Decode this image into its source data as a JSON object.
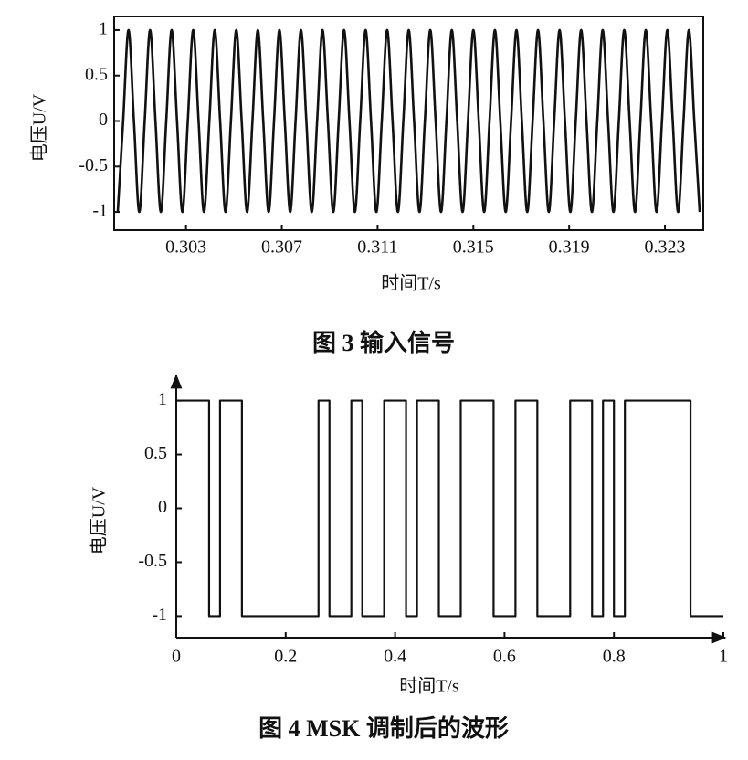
{
  "chart_data": [
    {
      "type": "line",
      "caption": "图 3  输入信号",
      "xlabel": "时间T/s",
      "ylabel": "电压U/V",
      "color": "#111111",
      "smooth": true,
      "box": true,
      "xlim": [
        0.3,
        0.3246
      ],
      "ylim": [
        -1.2,
        1.15
      ],
      "xticks": [
        0.303,
        0.307,
        0.311,
        0.315,
        0.319,
        0.323
      ],
      "yticks": [
        -1,
        -0.5,
        0,
        0.5,
        1
      ],
      "x": [
        0.30015,
        0.300375,
        0.3006,
        0.300825,
        0.30105,
        0.301275,
        0.3015,
        0.301725,
        0.30195,
        0.302175,
        0.3024,
        0.302625,
        0.30285,
        0.303075,
        0.3033,
        0.303525,
        0.30375,
        0.303975,
        0.3042,
        0.304425,
        0.30465,
        0.304875,
        0.3051,
        0.305325,
        0.30555,
        0.305775,
        0.306,
        0.306225,
        0.30645,
        0.306675,
        0.3069,
        0.307125,
        0.30735,
        0.307575,
        0.3078,
        0.308025,
        0.30825,
        0.308475,
        0.3087,
        0.308925,
        0.30915,
        0.309375,
        0.3096,
        0.309825,
        0.31005,
        0.310275,
        0.3105,
        0.310725,
        0.31095,
        0.311175,
        0.3114,
        0.311625,
        0.31185,
        0.312075,
        0.3123,
        0.312525,
        0.31275,
        0.312975,
        0.3132,
        0.313425,
        0.31365,
        0.313875,
        0.3141,
        0.314325,
        0.31455,
        0.314775,
        0.315,
        0.315225,
        0.31545,
        0.315675,
        0.3159,
        0.316125,
        0.31635,
        0.316575,
        0.3168,
        0.317025,
        0.31725,
        0.317475,
        0.3177,
        0.317925,
        0.31815,
        0.318375,
        0.3186,
        0.318825,
        0.31905,
        0.319275,
        0.3195,
        0.319725,
        0.31995,
        0.320175,
        0.3204,
        0.320625,
        0.32085,
        0.321075,
        0.3213,
        0.321525,
        0.32175,
        0.321975,
        0.3222,
        0.322425,
        0.32265,
        0.322875,
        0.3231,
        0.323325,
        0.32355,
        0.323775,
        0.324,
        0.324225,
        0.32445
      ],
      "values": [
        -1,
        0,
        1,
        0,
        -1,
        0,
        1,
        0,
        -1,
        0,
        1,
        0,
        -1,
        0,
        1,
        0,
        -1,
        0,
        1,
        0,
        -1,
        0,
        1,
        0,
        -1,
        0,
        1,
        0,
        -1,
        0,
        1,
        0,
        -1,
        0,
        1,
        0,
        -1,
        0,
        1,
        0,
        -1,
        0,
        1,
        0,
        -1,
        0,
        1,
        0,
        -1,
        0,
        1,
        0,
        -1,
        0,
        1,
        0,
        -1,
        0,
        1,
        0,
        -1,
        0,
        1,
        0,
        -1,
        0,
        1,
        0,
        -1,
        0,
        1,
        0,
        -1,
        0,
        1,
        0,
        -1,
        0,
        1,
        0,
        -1,
        0,
        1,
        0,
        -1,
        0,
        1,
        0,
        -1,
        0,
        1,
        0,
        -1,
        0,
        1,
        0,
        -1,
        0,
        1,
        0,
        -1,
        0,
        1,
        0,
        -1,
        0,
        1,
        0,
        -1
      ]
    },
    {
      "type": "line",
      "caption": "图 4  MSK 调制后的波形",
      "xlabel": "时间T/s",
      "ylabel": "电压U/V",
      "color": "#111111",
      "arrows": true,
      "xlim": [
        0,
        1
      ],
      "ylim": [
        -1.2,
        1.2
      ],
      "xticks": [
        0,
        0.2,
        0.4,
        0.6,
        0.8,
        1
      ],
      "yticks": [
        -1,
        -0.5,
        0,
        0.5,
        1
      ],
      "x": [
        0,
        0.06,
        0.06,
        0.08,
        0.08,
        0.12,
        0.12,
        0.26,
        0.26,
        0.28,
        0.28,
        0.32,
        0.32,
        0.34,
        0.34,
        0.38,
        0.38,
        0.42,
        0.42,
        0.44,
        0.44,
        0.48,
        0.48,
        0.52,
        0.52,
        0.58,
        0.58,
        0.62,
        0.62,
        0.66,
        0.66,
        0.72,
        0.72,
        0.76,
        0.76,
        0.78,
        0.78,
        0.8,
        0.8,
        0.82,
        0.82,
        0.94,
        0.94,
        1
      ],
      "values": [
        1,
        1,
        -1,
        -1,
        1,
        1,
        -1,
        -1,
        1,
        1,
        -1,
        -1,
        1,
        1,
        -1,
        -1,
        1,
        1,
        -1,
        -1,
        1,
        1,
        -1,
        -1,
        1,
        1,
        -1,
        -1,
        1,
        1,
        -1,
        -1,
        1,
        1,
        -1,
        -1,
        1,
        1,
        -1,
        -1,
        1,
        1,
        -1,
        -1
      ]
    }
  ]
}
